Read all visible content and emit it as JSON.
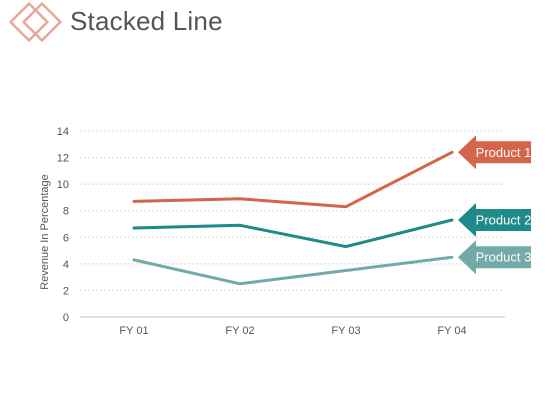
{
  "header": {
    "title": "Stacked Line"
  },
  "colors": {
    "accent": "#e8a79a",
    "product1": "#d4654a",
    "product2": "#1f8a8a",
    "product3": "#72aaa8",
    "grid": "#d9d9d9",
    "text": "#555555"
  },
  "chart_data": {
    "type": "line",
    "title": "Stacked Line",
    "xlabel": "",
    "ylabel": "Revenue In Percentage",
    "categories": [
      "FY 01",
      "FY 02",
      "FY 03",
      "FY 04"
    ],
    "ylim": [
      0,
      14
    ],
    "yticks": [
      0,
      2,
      4,
      6,
      8,
      10,
      12,
      14
    ],
    "grid": true,
    "legend": "callouts-right",
    "series": [
      {
        "name": "Product 1",
        "color": "#d4654a",
        "values": [
          8.7,
          8.9,
          8.3,
          12.4
        ]
      },
      {
        "name": "Product 2",
        "color": "#1f8a8a",
        "values": [
          6.7,
          6.9,
          5.3,
          7.3
        ]
      },
      {
        "name": "Product 3",
        "color": "#72aaa8",
        "values": [
          4.3,
          2.5,
          3.5,
          4.5
        ]
      }
    ]
  }
}
